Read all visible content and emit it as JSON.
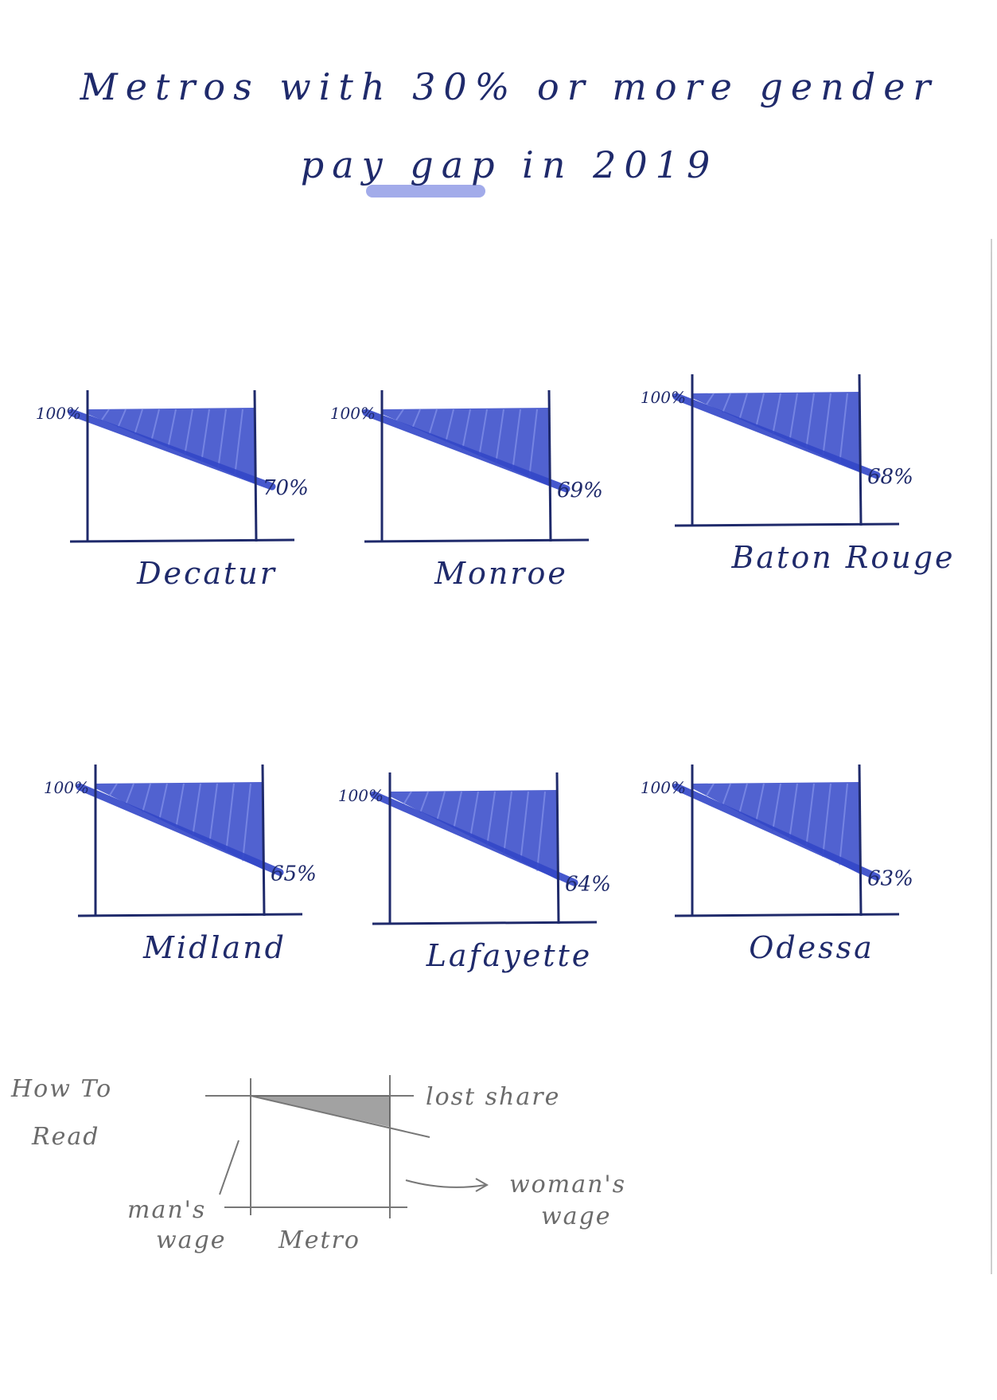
{
  "title": {
    "line1": "Metros with 30% or more gender",
    "line2": "pay gap in 2019"
  },
  "colors": {
    "ink": "#1f2a6b",
    "fill": "#3347c8",
    "pencil": "#6b6b6b"
  },
  "chart_data": {
    "type": "area",
    "series_description_none": "",
    "y_start_label": "100%",
    "metros": [
      {
        "name": "Decatur",
        "start": 100,
        "end": 70,
        "end_label": "70%"
      },
      {
        "name": "Monroe",
        "start": 100,
        "end": 69,
        "end_label": "69%"
      },
      {
        "name": "Baton Rouge",
        "start": 100,
        "end": 68,
        "end_label": "68%"
      },
      {
        "name": "Midland",
        "start": 100,
        "end": 65,
        "end_label": "65%"
      },
      {
        "name": "Lafayette",
        "start": 100,
        "end": 64,
        "end_label": "64%"
      },
      {
        "name": "Odessa",
        "start": 100,
        "end": 63,
        "end_label": "63%"
      }
    ]
  },
  "how_to_read": {
    "heading_line1": "How To",
    "heading_line2": "Read",
    "lost_share": "lost share",
    "womans_wage_line1": "woman's",
    "womans_wage_line2": "wage",
    "mans_wage_line1": "man's",
    "mans_wage_line2": "wage",
    "metro": "Metro"
  }
}
